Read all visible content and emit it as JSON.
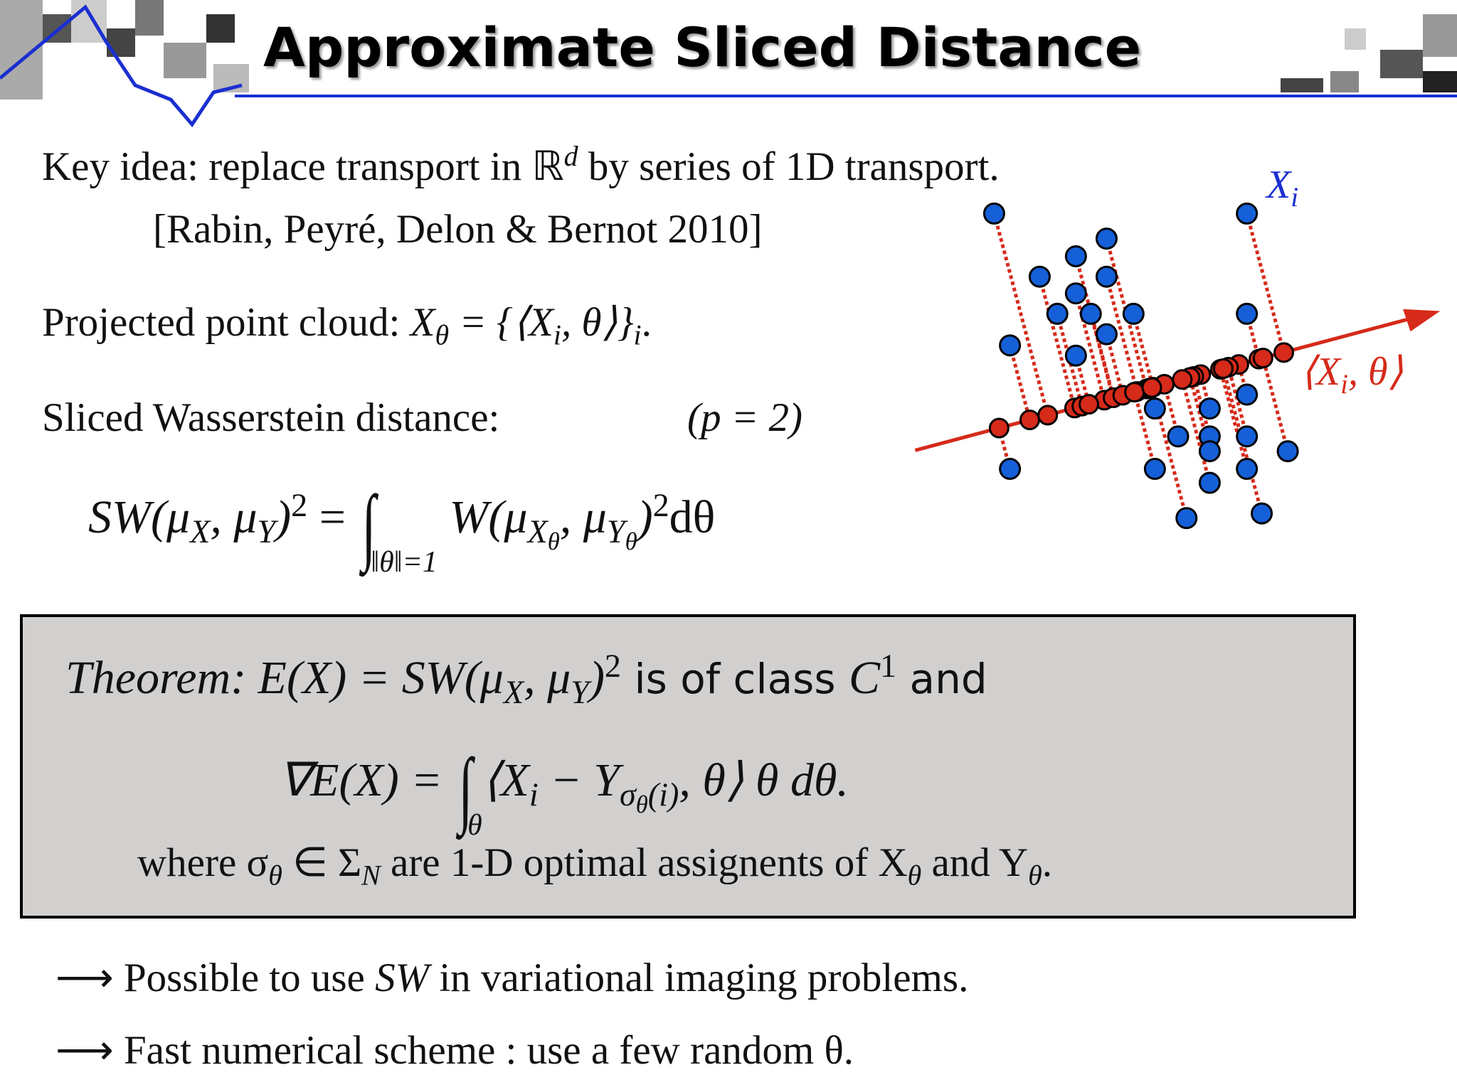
{
  "header": {
    "title": "Approximate Sliced Distance"
  },
  "body": {
    "key_idea": [
      "Key idea: replace transport in ",
      "ℝ",
      "d",
      " by series of 1D transport."
    ],
    "reference": "[Rabin, Peyré, Delon & Bernot 2010]",
    "projected": [
      "Projected point cloud: ",
      "X",
      "θ",
      " = {⟨X",
      "i",
      ", θ⟩}",
      "i",
      "."
    ],
    "sliced": {
      "label": "Sliced Wasserstein distance:",
      "p": "(p = 2)"
    },
    "formula": [
      "SW(μ",
      "X",
      ", μ",
      "Y",
      ")",
      "2",
      " = ",
      "∫",
      "‖θ‖=1",
      " W(μ",
      "X",
      "θ",
      ", μ",
      "Y",
      "θ",
      ")",
      "2",
      "dθ"
    ]
  },
  "figure": {
    "points_label": [
      "X",
      "i"
    ],
    "projection_label": [
      "⟨X",
      "i",
      ", θ⟩"
    ]
  },
  "theorem": {
    "statement": [
      "Theorem:",
      " E(X) = SW(μ",
      "X",
      ", μ",
      "Y",
      ")",
      "2",
      " is of class ",
      "C",
      "1",
      " and"
    ],
    "gradient": [
      "∇E(X) = ",
      "∫",
      "θ",
      "⟨X",
      "i",
      " − Y",
      "σ",
      "θ",
      "(i)",
      ", θ⟩ θ dθ."
    ],
    "where": [
      "where σ",
      "θ",
      " ∈ Σ",
      "N",
      " are 1-D optimal assignents of X",
      "θ",
      " and Y",
      "θ",
      "."
    ]
  },
  "conclusions": [
    [
      "⟶ Possible to use ",
      "SW",
      " in variational imaging problems."
    ],
    [
      "⟶ Fast numerical scheme : use a few random θ."
    ]
  ]
}
